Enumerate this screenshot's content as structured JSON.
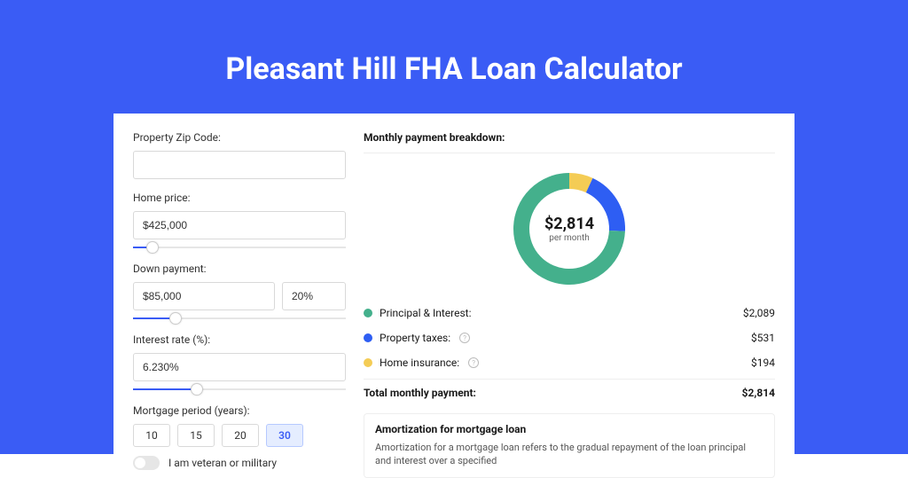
{
  "page": {
    "title": "Pleasant Hill FHA Loan Calculator",
    "bg_color": "#3a5cf5"
  },
  "form": {
    "zip": {
      "label": "Property Zip Code:",
      "value": ""
    },
    "home_price": {
      "label": "Home price:",
      "value": "$425,000",
      "slider_percent": 9
    },
    "down_payment": {
      "label": "Down payment:",
      "amount": "$85,000",
      "percent": "20%",
      "slider_percent": 20
    },
    "interest_rate": {
      "label": "Interest rate (%):",
      "value": "6.230%",
      "slider_percent": 30
    },
    "period": {
      "label": "Mortgage period (years):",
      "options": [
        "10",
        "15",
        "20",
        "30"
      ],
      "selected_index": 3
    },
    "veteran": {
      "label": "I am veteran or military",
      "checked": false
    }
  },
  "breakdown": {
    "title": "Monthly payment breakdown:",
    "center_amount": "$2,814",
    "center_sub": "per month",
    "items": [
      {
        "label": "Principal & Interest:",
        "value": "$2,089",
        "color": "#44b08c",
        "has_info": false,
        "pct": 74.3
      },
      {
        "label": "Property taxes:",
        "value": "$531",
        "color": "#2e5ef3",
        "has_info": true,
        "pct": 18.8
      },
      {
        "label": "Home insurance:",
        "value": "$194",
        "color": "#f4cc55",
        "has_info": true,
        "pct": 6.9
      }
    ],
    "total_label": "Total monthly payment:",
    "total_value": "$2,814",
    "donut_thickness": 18,
    "donut_radius": 54
  },
  "amortization": {
    "title": "Amortization for mortgage loan",
    "text": "Amortization for a mortgage loan refers to the gradual repayment of the loan principal and interest over a specified"
  }
}
